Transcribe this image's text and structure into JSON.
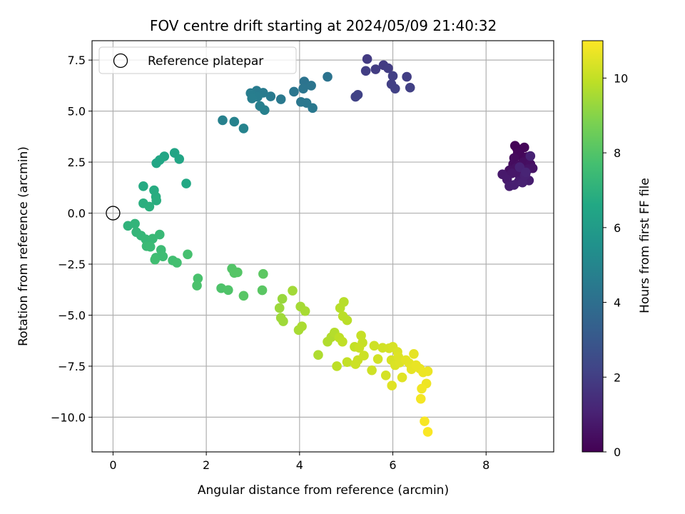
{
  "chart_data": {
    "type": "scatter",
    "title": "FOV centre drift starting at 2024/05/09 21:40:32",
    "xlabel": "Angular distance from reference (arcmin)",
    "ylabel": "Rotation from reference (arcmin)",
    "xlim": [
      -0.45,
      9.45
    ],
    "ylim": [
      -11.7,
      8.45
    ],
    "xticks": [
      0,
      2,
      4,
      6,
      8
    ],
    "xtick_labels": [
      "0",
      "2",
      "4",
      "6",
      "8"
    ],
    "yticks": [
      -10,
      -7.5,
      -5,
      -2.5,
      0,
      2.5,
      5,
      7.5
    ],
    "ytick_labels": [
      "−10.0",
      "−7.5",
      "−5.0",
      "−2.5",
      "0.0",
      "2.5",
      "5.0",
      "7.5"
    ],
    "grid": true,
    "legend": {
      "position": "top-left",
      "entries": [
        "Reference platepar"
      ]
    },
    "reference_point": {
      "x": 0,
      "y": 0,
      "label": "Reference platepar"
    },
    "colorbar": {
      "label": "Hours from first FF file",
      "range": [
        0,
        11
      ],
      "ticks": [
        0,
        2,
        4,
        6,
        8,
        10
      ],
      "tick_labels": [
        "0",
        "2",
        "4",
        "6",
        "8",
        "10"
      ],
      "colormap": "viridis"
    },
    "points": [
      [
        8.62,
        3.3,
        0.1
      ],
      [
        8.66,
        3.18,
        0.1
      ],
      [
        8.82,
        3.22,
        0.15
      ],
      [
        8.68,
        2.95,
        0.2
      ],
      [
        8.75,
        2.8,
        0.2
      ],
      [
        8.88,
        2.75,
        0.25
      ],
      [
        8.9,
        2.6,
        0.3
      ],
      [
        8.6,
        2.7,
        0.3
      ],
      [
        8.58,
        2.4,
        0.35
      ],
      [
        8.7,
        2.35,
        0.4
      ],
      [
        8.8,
        2.5,
        0.4
      ],
      [
        8.95,
        2.4,
        0.45
      ],
      [
        8.5,
        2.1,
        0.5
      ],
      [
        8.63,
        2.2,
        0.5
      ],
      [
        8.75,
        2.1,
        0.55
      ],
      [
        8.9,
        2.15,
        0.6
      ],
      [
        9.0,
        2.2,
        0.6
      ],
      [
        8.85,
        1.95,
        0.65
      ],
      [
        8.7,
        1.9,
        0.7
      ],
      [
        8.55,
        1.95,
        0.7
      ],
      [
        8.35,
        1.9,
        0.75
      ],
      [
        8.45,
        1.65,
        0.8
      ],
      [
        8.8,
        1.7,
        0.8
      ],
      [
        8.7,
        1.55,
        0.85
      ],
      [
        8.92,
        1.6,
        0.9
      ],
      [
        8.5,
        1.32,
        0.9
      ],
      [
        8.6,
        1.38,
        0.95
      ],
      [
        8.78,
        1.5,
        1.0
      ],
      [
        8.83,
        1.85,
        1.0
      ],
      [
        8.72,
        2.25,
        1.05
      ],
      [
        8.95,
        2.8,
        1.05
      ],
      [
        8.85,
        2.0,
        1.1
      ],
      [
        5.45,
        7.55,
        1.9
      ],
      [
        5.8,
        7.25,
        1.9
      ],
      [
        5.9,
        7.1,
        1.95
      ],
      [
        5.63,
        7.05,
        1.95
      ],
      [
        5.42,
        6.97,
        2.0
      ],
      [
        6.3,
        6.68,
        2.0
      ],
      [
        6.0,
        6.72,
        2.05
      ],
      [
        5.97,
        6.32,
        2.05
      ],
      [
        6.37,
        6.15,
        2.1
      ],
      [
        6.05,
        6.1,
        2.1
      ],
      [
        5.25,
        5.8,
        2.15
      ],
      [
        5.2,
        5.7,
        2.15
      ],
      [
        4.6,
        6.68,
        4.2
      ],
      [
        4.1,
        6.45,
        4.2
      ],
      [
        4.25,
        6.25,
        4.25
      ],
      [
        4.08,
        6.1,
        4.25
      ],
      [
        3.88,
        5.95,
        4.3
      ],
      [
        4.03,
        5.45,
        4.35
      ],
      [
        4.15,
        5.4,
        4.35
      ],
      [
        4.28,
        5.15,
        4.4
      ],
      [
        3.6,
        5.58,
        4.45
      ],
      [
        3.38,
        5.72,
        4.5
      ],
      [
        3.22,
        5.9,
        4.55
      ],
      [
        3.08,
        6.0,
        4.55
      ],
      [
        2.95,
        5.88,
        4.6
      ],
      [
        3.1,
        5.7,
        4.6
      ],
      [
        2.98,
        5.62,
        4.65
      ],
      [
        3.15,
        5.25,
        4.7
      ],
      [
        3.25,
        5.05,
        4.75
      ],
      [
        2.35,
        4.55,
        4.8
      ],
      [
        2.6,
        4.48,
        4.85
      ],
      [
        2.8,
        4.15,
        4.9
      ],
      [
        1.32,
        2.95,
        6.4
      ],
      [
        1.1,
        2.78,
        6.45
      ],
      [
        1.42,
        2.65,
        6.45
      ],
      [
        1.0,
        2.6,
        6.5
      ],
      [
        0.93,
        2.45,
        6.5
      ],
      [
        1.57,
        1.45,
        6.6
      ],
      [
        0.65,
        1.32,
        6.7
      ],
      [
        0.88,
        1.12,
        6.75
      ],
      [
        0.92,
        0.8,
        6.8
      ],
      [
        0.93,
        0.62,
        6.85
      ],
      [
        0.65,
        0.48,
        6.9
      ],
      [
        0.78,
        0.32,
        6.95
      ],
      [
        0.32,
        -0.62,
        7.1
      ],
      [
        0.47,
        -0.52,
        7.15
      ],
      [
        0.5,
        -0.93,
        7.2
      ],
      [
        0.6,
        -1.1,
        7.25
      ],
      [
        0.7,
        -1.28,
        7.3
      ],
      [
        1.0,
        -1.05,
        7.35
      ],
      [
        0.85,
        -1.25,
        7.35
      ],
      [
        0.72,
        -1.62,
        7.4
      ],
      [
        0.8,
        -1.65,
        7.45
      ],
      [
        1.03,
        -1.8,
        7.5
      ],
      [
        1.07,
        -2.12,
        7.55
      ],
      [
        0.92,
        -2.18,
        7.55
      ],
      [
        0.9,
        -2.28,
        7.6
      ],
      [
        1.28,
        -2.32,
        7.65
      ],
      [
        1.37,
        -2.43,
        7.7
      ],
      [
        1.6,
        -2.02,
        7.75
      ],
      [
        1.82,
        -3.2,
        7.8
      ],
      [
        1.8,
        -3.55,
        7.85
      ],
      [
        2.32,
        -3.68,
        7.9
      ],
      [
        2.47,
        -3.77,
        7.95
      ],
      [
        2.55,
        -2.72,
        8.0
      ],
      [
        2.6,
        -2.93,
        8.05
      ],
      [
        2.67,
        -2.9,
        8.05
      ],
      [
        2.8,
        -4.05,
        8.1
      ],
      [
        3.2,
        -3.78,
        8.15
      ],
      [
        3.22,
        -2.98,
        8.2
      ],
      [
        3.63,
        -4.2,
        9.3
      ],
      [
        3.57,
        -4.65,
        9.35
      ],
      [
        3.6,
        -5.13,
        9.4
      ],
      [
        3.65,
        -5.3,
        9.4
      ],
      [
        3.85,
        -3.8,
        9.45
      ],
      [
        4.02,
        -4.58,
        9.5
      ],
      [
        4.12,
        -4.8,
        9.55
      ],
      [
        3.98,
        -5.73,
        9.55
      ],
      [
        4.05,
        -5.55,
        9.6
      ],
      [
        4.4,
        -6.95,
        9.65
      ],
      [
        4.6,
        -6.3,
        9.7
      ],
      [
        4.68,
        -6.08,
        9.7
      ],
      [
        4.75,
        -5.85,
        9.75
      ],
      [
        4.87,
        -4.65,
        9.8
      ],
      [
        4.95,
        -4.35,
        9.8
      ],
      [
        4.93,
        -5.05,
        9.85
      ],
      [
        5.02,
        -5.25,
        9.85
      ],
      [
        4.8,
        -7.5,
        9.9
      ],
      [
        4.85,
        -6.1,
        9.9
      ],
      [
        4.92,
        -6.3,
        9.95
      ],
      [
        5.02,
        -7.3,
        10.0
      ],
      [
        5.18,
        -6.55,
        10.0
      ],
      [
        5.32,
        -6.0,
        10.05
      ],
      [
        5.35,
        -6.35,
        10.05
      ],
      [
        5.28,
        -6.6,
        10.1
      ],
      [
        5.25,
        -7.2,
        10.1
      ],
      [
        5.2,
        -7.4,
        10.15
      ],
      [
        5.38,
        -6.98,
        10.15
      ],
      [
        5.55,
        -7.7,
        10.2
      ],
      [
        5.6,
        -6.5,
        10.2
      ],
      [
        5.68,
        -7.15,
        10.25
      ],
      [
        5.78,
        -6.6,
        10.25
      ],
      [
        5.85,
        -7.95,
        10.3
      ],
      [
        5.92,
        -6.62,
        10.3
      ],
      [
        5.97,
        -7.2,
        10.35
      ],
      [
        6.0,
        -6.55,
        10.35
      ],
      [
        6.05,
        -7.45,
        10.4
      ],
      [
        6.1,
        -6.8,
        10.4
      ],
      [
        6.12,
        -7.05,
        10.45
      ],
      [
        6.15,
        -7.32,
        10.45
      ],
      [
        5.98,
        -8.45,
        10.5
      ],
      [
        6.2,
        -8.05,
        10.5
      ],
      [
        6.28,
        -7.2,
        10.55
      ],
      [
        6.35,
        -7.35,
        10.55
      ],
      [
        6.45,
        -6.9,
        10.6
      ],
      [
        6.4,
        -7.65,
        10.6
      ],
      [
        6.5,
        -7.45,
        10.65
      ],
      [
        6.58,
        -7.62,
        10.65
      ],
      [
        6.65,
        -7.8,
        10.7
      ],
      [
        6.75,
        -7.75,
        10.7
      ],
      [
        6.72,
        -8.35,
        10.75
      ],
      [
        6.62,
        -8.6,
        10.8
      ],
      [
        6.6,
        -9.1,
        10.85
      ],
      [
        6.68,
        -10.2,
        10.9
      ],
      [
        6.75,
        -10.72,
        10.95
      ]
    ]
  }
}
